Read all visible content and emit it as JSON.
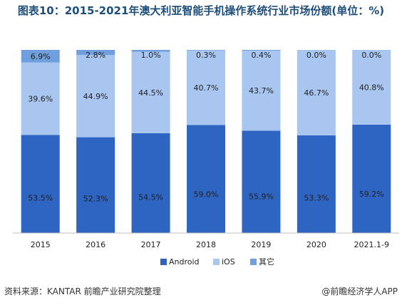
{
  "title": "图表10：2015-2021年澳大利亚智能手机操作系统行业市场份额(单位：%)",
  "source": "资料来源：KANTAR 前瞻产业研究院整理",
  "brand": "@前瞻经济学人APP",
  "colors": {
    "Android": "#2e64c2",
    "iOS": "#a8c6f0",
    "其它": "#6f9fdc"
  },
  "chart_data": {
    "type": "bar",
    "stacked": true,
    "categories": [
      "2015",
      "2016",
      "2017",
      "2018",
      "2019",
      "2020",
      "2021.1-9"
    ],
    "series": [
      {
        "name": "Android",
        "values": [
          53.5,
          52.3,
          54.5,
          59.0,
          55.9,
          53.3,
          59.2
        ]
      },
      {
        "name": "iOS",
        "values": [
          39.6,
          44.9,
          44.5,
          40.7,
          43.7,
          46.7,
          40.8
        ]
      },
      {
        "name": "其它",
        "values": [
          6.9,
          2.8,
          1.0,
          0.3,
          0.4,
          0.0,
          0.0
        ]
      }
    ],
    "ylim": [
      0,
      100
    ],
    "legend": "bottom",
    "grid": false
  }
}
